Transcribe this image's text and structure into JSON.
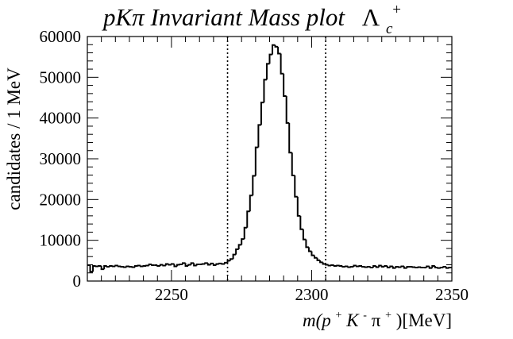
{
  "chart_data": {
    "type": "line",
    "style": "histogram-step",
    "title": "pKπ Invariant Mass plot  Λc+",
    "title_parts": {
      "main": "pKπ Invariant Mass plot",
      "symbol": "Λ",
      "subscript": "c",
      "superscript": "+"
    },
    "xlabel": "m(p⁺K⁻π⁺)[MeV]",
    "xlabel_parts": {
      "prefix": "m(p",
      "sup1": "+",
      "k": "K",
      "sup2": "-",
      "pi": "π",
      "sup3": "+",
      "suffix": ")[MeV]"
    },
    "ylabel": "candidates / 1 MeV",
    "xlim": [
      2220,
      2350
    ],
    "ylim": [
      0,
      60000
    ],
    "xticks": [
      2250,
      2300,
      2350
    ],
    "yticks": [
      0,
      10000,
      20000,
      30000,
      40000,
      50000,
      60000
    ],
    "xtick_labels": [
      "2250",
      "2300",
      "2350"
    ],
    "ytick_labels": [
      "0",
      "10000",
      "20000",
      "30000",
      "40000",
      "50000",
      "60000"
    ],
    "grid": false,
    "legend": "none",
    "bin_width": 1,
    "vertical_lines": [
      {
        "x": 2270,
        "style": "dotted"
      },
      {
        "x": 2305,
        "style": "dotted"
      }
    ],
    "bin_edges_start": 2220,
    "values": [
      3900,
      2300,
      3700,
      3600,
      3700,
      2900,
      3700,
      3500,
      3700,
      3600,
      3800,
      3600,
      3500,
      3400,
      3600,
      3500,
      3400,
      3700,
      3800,
      3600,
      3700,
      3800,
      4100,
      3900,
      3900,
      3700,
      4000,
      3800,
      4200,
      4000,
      4200,
      3600,
      4000,
      4100,
      4400,
      3700,
      4000,
      4400,
      3800,
      4100,
      4100,
      4200,
      4400,
      4000,
      4300,
      3900,
      4200,
      4300,
      4200,
      4500,
      5000,
      5400,
      6500,
      7800,
      8900,
      10300,
      13100,
      17100,
      21000,
      25800,
      32800,
      38300,
      43800,
      49400,
      53300,
      55600,
      57900,
      57500,
      55800,
      50900,
      45400,
      38800,
      31500,
      25900,
      20700,
      16000,
      12700,
      10200,
      8300,
      7300,
      6300,
      5700,
      5100,
      4600,
      4200,
      4000,
      3800,
      3900,
      3700,
      3800,
      3700,
      3500,
      3600,
      3400,
      3500,
      3800,
      3600,
      3700,
      3500,
      3400,
      3500,
      3300,
      3700,
      3400,
      3800,
      3500,
      3700,
      3300,
      3600,
      3200,
      3500,
      3400,
      3600,
      3200,
      3500,
      3500,
      3400,
      3300,
      3400,
      3300,
      3300,
      3600,
      3200,
      3700,
      3300,
      3200,
      3300,
      3500,
      3200,
      3300
    ]
  }
}
